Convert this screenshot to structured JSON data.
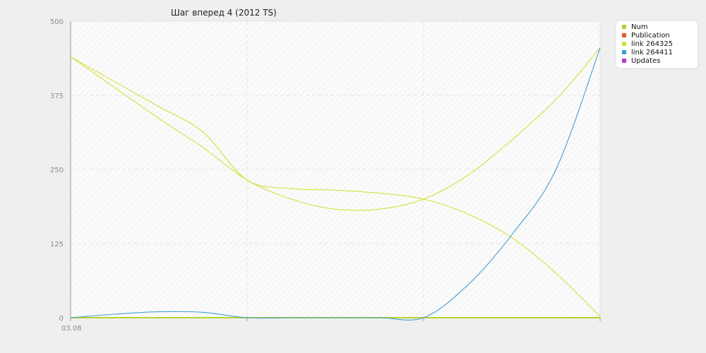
{
  "chart_data": {
    "type": "line",
    "title": "Шаг вперед 4  (2012 TS)",
    "x_ticks": [
      {
        "label": "03.08"
      },
      {
        "label": ""
      },
      {
        "label": ""
      },
      {
        "label": ""
      }
    ],
    "ylim": [
      0,
      500
    ],
    "y_ticks": [
      0,
      125,
      250,
      375,
      500
    ],
    "grid": true,
    "legend_placement": "top-right",
    "series": [
      {
        "name": "Num",
        "color": "#b5d32a",
        "x": [
          0,
          0.25,
          0.5,
          0.75,
          1.0,
          1.25,
          1.5,
          1.75,
          2.0,
          2.25,
          2.5,
          2.75,
          3.0
        ],
        "values": [
          0,
          0,
          0,
          0,
          0,
          0,
          0,
          0,
          0,
          0,
          0,
          0,
          0
        ]
      },
      {
        "name": "Publication",
        "color": "#d9632a",
        "x": [],
        "values": []
      },
      {
        "name": "link 264325",
        "color": "#d4df3a",
        "x": [
          0,
          0.25,
          0.5,
          0.75,
          1.0,
          1.25,
          1.5,
          1.75,
          2.0,
          2.25,
          2.5,
          2.75,
          3.0
        ],
        "values": [
          440,
          398,
          356,
          313,
          232,
          218,
          215,
          210,
          200,
          175,
          135,
          75,
          2
        ]
      },
      {
        "name": "link 264325",
        "color": "#d4df3a",
        "x": [
          0,
          0.25,
          0.5,
          0.75,
          1.0,
          1.25,
          1.5,
          1.75,
          2.0,
          2.25,
          2.5,
          2.75,
          3.0
        ],
        "values": [
          440,
          388,
          336,
          287,
          232,
          200,
          183,
          183,
          200,
          240,
          300,
          368,
          455
        ]
      },
      {
        "name": "link 264411",
        "color": "#3fa0d2",
        "x": [
          0,
          0.25,
          0.5,
          0.75,
          1.0,
          1.25,
          1.5,
          1.75,
          2.0,
          2.25,
          2.5,
          2.75,
          3.0
        ],
        "values": [
          0,
          6,
          10,
          9,
          0,
          0,
          0,
          0,
          0,
          55,
          140,
          250,
          455
        ]
      },
      {
        "name": "Updates",
        "color": "#b43cc8",
        "x": [],
        "values": []
      }
    ],
    "legend": [
      {
        "name": "Num",
        "color": "#b5d32a"
      },
      {
        "name": "Publication",
        "color": "#d9632a"
      },
      {
        "name": "link 264325",
        "color": "#d4df3a"
      },
      {
        "name": "link 264411",
        "color": "#3fa0d2"
      },
      {
        "name": "Updates",
        "color": "#b43cc8"
      }
    ]
  }
}
